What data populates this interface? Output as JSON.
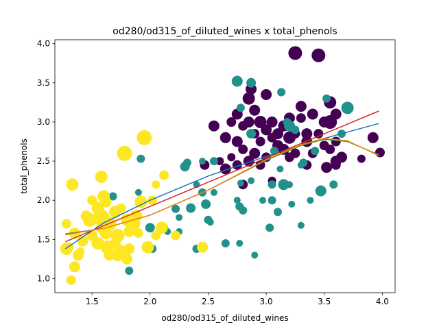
{
  "chart_data": {
    "type": "scatter",
    "title": "od280/od315_of_diluted_wines x total_phenols",
    "xlabel": "od280/od315_of_diluted_wines",
    "ylabel": "total_phenols",
    "xlim": [
      1.18,
      4.11
    ],
    "ylim": [
      0.82,
      4.05
    ],
    "xticks": [
      1.5,
      2.0,
      2.5,
      3.0,
      3.5,
      4.0
    ],
    "xtick_labels": [
      "1.5",
      "2.0",
      "2.5",
      "3.0",
      "3.5",
      "4.0"
    ],
    "yticks": [
      1.0,
      1.5,
      2.0,
      2.5,
      3.0,
      3.5,
      4.0
    ],
    "ytick_labels": [
      "1.0",
      "1.5",
      "2.0",
      "2.5",
      "3.0",
      "3.5",
      "4.0"
    ],
    "grid": false,
    "legend": false,
    "point_groups": [
      {
        "color": "#440154",
        "points": [
          [
            3.25,
            3.88,
            10
          ],
          [
            3.45,
            3.85,
            10
          ],
          [
            2.87,
            3.42,
            8
          ],
          [
            2.85,
            3.3,
            9
          ],
          [
            3.0,
            3.35,
            8
          ],
          [
            2.9,
            3.15,
            8
          ],
          [
            3.3,
            3.2,
            8
          ],
          [
            3.4,
            3.1,
            8
          ],
          [
            3.55,
            3.25,
            9
          ],
          [
            3.6,
            3.1,
            8
          ],
          [
            2.7,
            3.0,
            7
          ],
          [
            2.75,
            3.1,
            8
          ],
          [
            2.85,
            3.0,
            8
          ],
          [
            2.95,
            3.0,
            9
          ],
          [
            3.05,
            3.0,
            8
          ],
          [
            3.15,
            2.95,
            8
          ],
          [
            3.2,
            3.05,
            8
          ],
          [
            3.3,
            3.05,
            7
          ],
          [
            3.5,
            3.0,
            8
          ],
          [
            3.55,
            3.0,
            10
          ],
          [
            2.55,
            2.95,
            8
          ],
          [
            2.8,
            2.95,
            7
          ],
          [
            3.0,
            2.9,
            8
          ],
          [
            2.9,
            2.85,
            7
          ],
          [
            3.1,
            2.85,
            8
          ],
          [
            3.25,
            2.85,
            7
          ],
          [
            3.35,
            2.85,
            8
          ],
          [
            3.45,
            2.85,
            7
          ],
          [
            3.2,
            2.8,
            9
          ],
          [
            2.65,
            2.8,
            8
          ],
          [
            2.75,
            2.75,
            8
          ],
          [
            2.95,
            2.75,
            7
          ],
          [
            3.05,
            2.8,
            7
          ],
          [
            3.1,
            2.7,
            8
          ],
          [
            3.35,
            2.75,
            8
          ],
          [
            3.5,
            2.7,
            7
          ],
          [
            3.6,
            2.75,
            7
          ],
          [
            3.65,
            2.55,
            8
          ],
          [
            2.8,
            2.65,
            7
          ],
          [
            2.9,
            2.6,
            8
          ],
          [
            3.15,
            2.65,
            8
          ],
          [
            3.25,
            2.6,
            7
          ],
          [
            3.4,
            2.6,
            7
          ],
          [
            3.55,
            2.65,
            7
          ],
          [
            2.7,
            2.55,
            6
          ],
          [
            2.85,
            2.5,
            8
          ],
          [
            3.0,
            2.55,
            7
          ],
          [
            3.2,
            2.55,
            7
          ],
          [
            3.6,
            2.5,
            8
          ],
          [
            3.82,
            2.53,
            6
          ],
          [
            2.65,
            2.4,
            8
          ],
          [
            2.75,
            2.45,
            7
          ],
          [
            2.95,
            2.45,
            7
          ],
          [
            3.35,
            2.45,
            7
          ],
          [
            3.52,
            2.42,
            8
          ],
          [
            3.6,
            2.45,
            7
          ],
          [
            2.8,
            2.2,
            7
          ],
          [
            2.47,
            2.45,
            7
          ],
          [
            3.98,
            2.61,
            7
          ],
          [
            3.92,
            2.8,
            8
          ],
          [
            3.05,
            2.25,
            6
          ],
          [
            2.6,
            2.5,
            6
          ]
        ]
      },
      {
        "color": "#21918c",
        "points": [
          [
            2.75,
            3.52,
            8
          ],
          [
            2.87,
            3.5,
            7
          ],
          [
            3.13,
            3.38,
            6
          ],
          [
            2.78,
            3.18,
            6
          ],
          [
            3.52,
            3.3,
            6
          ],
          [
            3.7,
            3.18,
            9
          ],
          [
            3.18,
            3.0,
            6
          ],
          [
            2.87,
            2.85,
            7
          ],
          [
            3.2,
            2.95,
            8
          ],
          [
            3.25,
            2.9,
            6
          ],
          [
            3.65,
            2.85,
            6
          ],
          [
            2.55,
            2.5,
            6
          ],
          [
            2.32,
            2.48,
            6
          ],
          [
            2.3,
            2.43,
            7
          ],
          [
            2.45,
            2.5,
            5
          ],
          [
            3.07,
            2.63,
            6
          ],
          [
            3.3,
            2.45,
            5
          ],
          [
            3.32,
            2.48,
            6
          ],
          [
            3.42,
            2.63,
            6
          ],
          [
            3.47,
            2.12,
            8
          ],
          [
            3.58,
            2.2,
            6
          ],
          [
            3.12,
            2.4,
            5
          ],
          [
            3.05,
            2.2,
            6
          ],
          [
            3.15,
            2.2,
            8
          ],
          [
            3.2,
            2.2,
            5
          ],
          [
            2.87,
            2.25,
            5
          ],
          [
            2.78,
            2.22,
            5
          ],
          [
            3.05,
            2.0,
            6
          ],
          [
            3.1,
            1.85,
            6
          ],
          [
            3.22,
            1.95,
            5
          ],
          [
            3.38,
            2.0,
            5
          ],
          [
            3.03,
            1.65,
            6
          ],
          [
            3.3,
            1.68,
            5
          ],
          [
            2.75,
            2.0,
            5
          ],
          [
            2.77,
            1.92,
            6
          ],
          [
            2.8,
            1.87,
            6
          ],
          [
            2.97,
            2.0,
            5
          ],
          [
            2.9,
            1.3,
            5
          ],
          [
            2.45,
            2.1,
            6
          ],
          [
            2.48,
            1.95,
            7
          ],
          [
            2.55,
            2.1,
            5
          ],
          [
            2.5,
            1.75,
            6
          ],
          [
            2.52,
            1.72,
            5
          ],
          [
            2.35,
            1.9,
            7
          ],
          [
            2.22,
            1.89,
            6
          ],
          [
            2.25,
            1.78,
            5
          ],
          [
            2.0,
            1.65,
            7
          ],
          [
            2.02,
            1.38,
            6
          ],
          [
            2.12,
            1.65,
            6
          ],
          [
            2.15,
            1.6,
            5
          ],
          [
            2.25,
            1.6,
            5
          ],
          [
            2.4,
            1.38,
            6
          ],
          [
            2.65,
            1.45,
            6
          ],
          [
            2.77,
            1.45,
            5
          ],
          [
            1.92,
            2.53,
            6
          ],
          [
            1.9,
            2.1,
            5
          ],
          [
            1.82,
            1.1,
            6
          ],
          [
            1.68,
            2.05,
            6
          ],
          [
            2.4,
            2.2,
            5
          ]
        ]
      },
      {
        "color": "#fde725",
        "points": [
          [
            1.95,
            2.8,
            11
          ],
          [
            1.78,
            2.6,
            11
          ],
          [
            1.58,
            2.3,
            9
          ],
          [
            2.12,
            2.32,
            7
          ],
          [
            1.33,
            2.2,
            9
          ],
          [
            1.6,
            2.05,
            9
          ],
          [
            1.62,
            1.98,
            8
          ],
          [
            1.5,
            2.0,
            7
          ],
          [
            1.55,
            1.9,
            9
          ],
          [
            1.75,
            1.9,
            7
          ],
          [
            1.92,
            1.98,
            9
          ],
          [
            2.02,
            2.0,
            7
          ],
          [
            1.45,
            1.8,
            8
          ],
          [
            1.48,
            1.75,
            10
          ],
          [
            1.58,
            1.78,
            12
          ],
          [
            1.65,
            1.7,
            10
          ],
          [
            1.7,
            1.85,
            9
          ],
          [
            1.8,
            1.75,
            9
          ],
          [
            1.85,
            1.7,
            11
          ],
          [
            1.88,
            1.8,
            9
          ],
          [
            1.58,
            1.65,
            8
          ],
          [
            1.5,
            1.55,
            8
          ],
          [
            1.62,
            1.58,
            9
          ],
          [
            1.72,
            1.55,
            10
          ],
          [
            1.82,
            1.6,
            8
          ],
          [
            1.9,
            1.58,
            7
          ],
          [
            1.28,
            1.7,
            7
          ],
          [
            1.35,
            1.58,
            8
          ],
          [
            1.42,
            1.48,
            8
          ],
          [
            1.55,
            1.45,
            9
          ],
          [
            1.63,
            1.4,
            10
          ],
          [
            1.7,
            1.45,
            8
          ],
          [
            1.75,
            1.35,
            9
          ],
          [
            1.65,
            1.3,
            8
          ],
          [
            1.72,
            1.3,
            9
          ],
          [
            1.82,
            1.38,
            8
          ],
          [
            1.3,
            1.4,
            7
          ],
          [
            1.28,
            1.38,
            9
          ],
          [
            1.4,
            1.35,
            6
          ],
          [
            1.98,
            1.4,
            9
          ],
          [
            2.05,
            1.55,
            7
          ],
          [
            2.1,
            1.65,
            9
          ],
          [
            2.22,
            1.55,
            7
          ],
          [
            2.05,
            2.2,
            6
          ],
          [
            1.38,
            1.3,
            8
          ],
          [
            1.35,
            1.15,
            8
          ],
          [
            1.32,
            0.98,
            7
          ],
          [
            1.8,
            1.25,
            8
          ],
          [
            2.45,
            1.4,
            8
          ]
        ]
      }
    ],
    "fit_lines": [
      {
        "color": "#1f77b4",
        "points": [
          [
            1.27,
            1.38
          ],
          [
            1.6,
            1.71
          ],
          [
            2.0,
            2.0
          ],
          [
            2.5,
            2.31
          ],
          [
            3.0,
            2.56
          ],
          [
            3.5,
            2.79
          ],
          [
            3.97,
            2.98
          ]
        ]
      },
      {
        "color": "#d62728",
        "points": [
          [
            1.27,
            1.47
          ],
          [
            3.97,
            3.14
          ]
        ]
      },
      {
        "color": "#2ca02c",
        "points": [
          [
            1.27,
            1.57
          ],
          [
            1.6,
            1.64
          ],
          [
            2.0,
            1.81
          ],
          [
            2.5,
            2.13
          ],
          [
            3.0,
            2.51
          ],
          [
            3.3,
            2.7
          ],
          [
            3.5,
            2.78
          ],
          [
            3.7,
            2.75
          ],
          [
            3.97,
            2.58
          ]
        ]
      },
      {
        "color": "#ff7f0e",
        "points": [
          [
            1.27,
            1.56
          ],
          [
            1.6,
            1.64
          ],
          [
            2.0,
            1.81
          ],
          [
            2.5,
            2.13
          ],
          [
            3.0,
            2.52
          ],
          [
            3.3,
            2.71
          ],
          [
            3.5,
            2.79
          ],
          [
            3.7,
            2.76
          ],
          [
            3.97,
            2.57
          ]
        ]
      }
    ]
  }
}
